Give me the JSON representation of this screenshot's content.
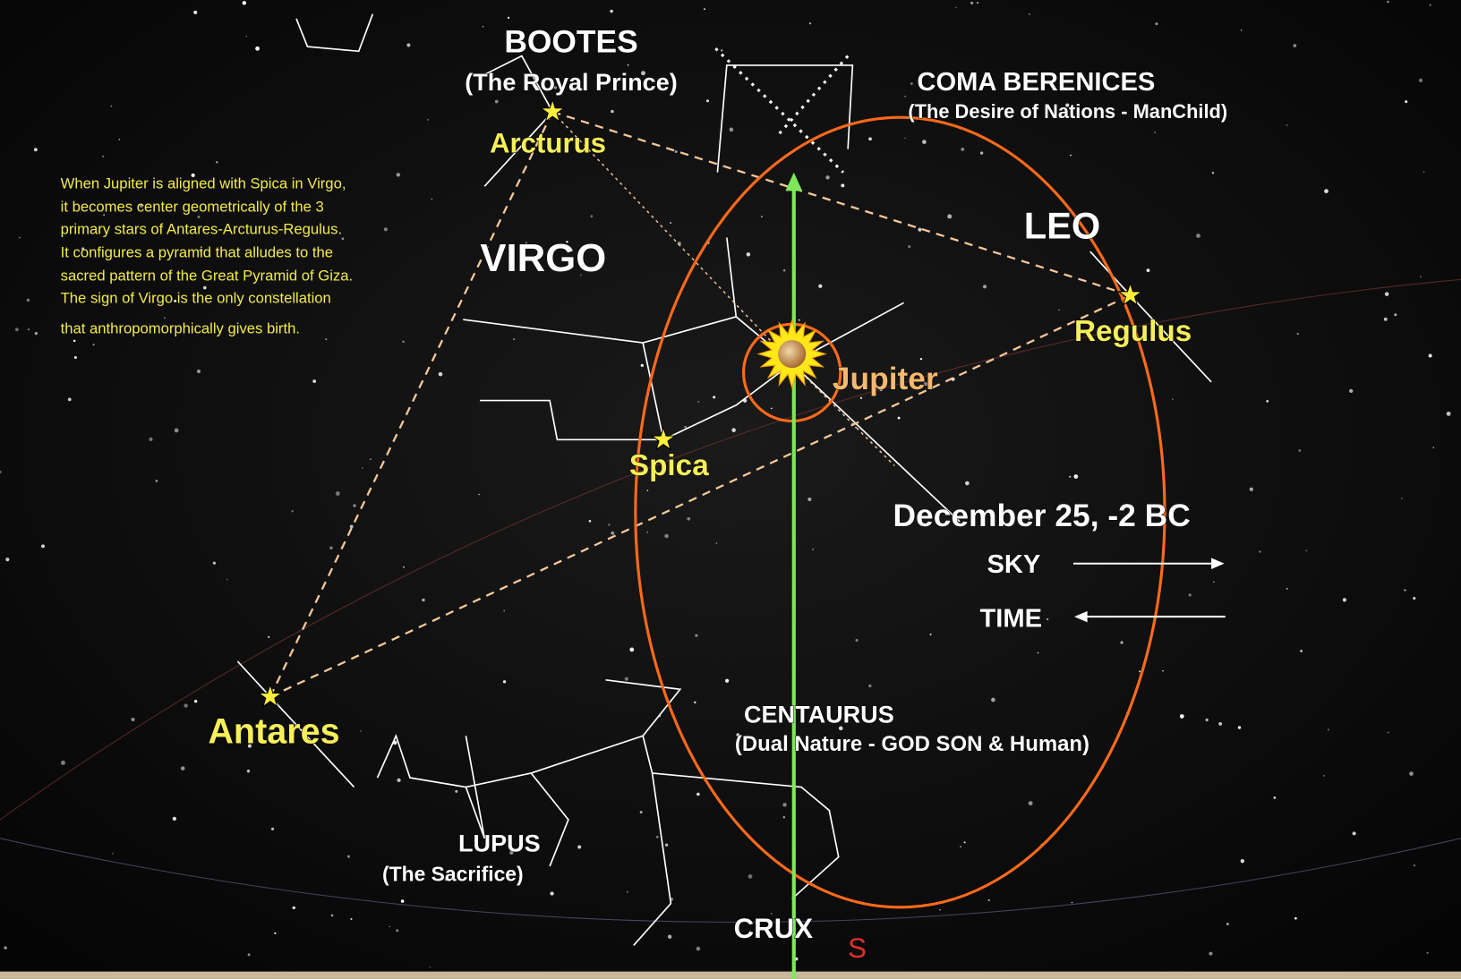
{
  "note": [
    "When Jupiter is aligned with Spica in Virgo,",
    "it becomes center geometrically of the 3",
    "primary stars of Antares-Arcturus-Regulus.",
    "It configures a pyramid that alludes to the",
    "sacred pattern of the Great Pyramid of Giza.",
    "The sign of Virgo is the only constellation",
    "that anthropomorphically gives birth."
  ],
  "constellations": [
    {
      "name": "BOOTES",
      "subtitle": "(The Royal Prince)"
    },
    {
      "name": "COMA BERENICES",
      "subtitle": "(The Desire of Nations - ManChild)"
    },
    {
      "name": "VIRGO"
    },
    {
      "name": "LEO"
    },
    {
      "name": "CENTAURUS",
      "subtitle": "(Dual Nature - GOD SON & Human)"
    },
    {
      "name": "LUPUS",
      "subtitle": "(The Sacrifice)"
    },
    {
      "name": "CRUX"
    }
  ],
  "stars": [
    "Arcturus",
    "Regulus",
    "Spica",
    "Antares"
  ],
  "planet": "Jupiter",
  "date": "December 25, -2 BC",
  "sky": "SKY",
  "time": "TIME",
  "direction": "S"
}
